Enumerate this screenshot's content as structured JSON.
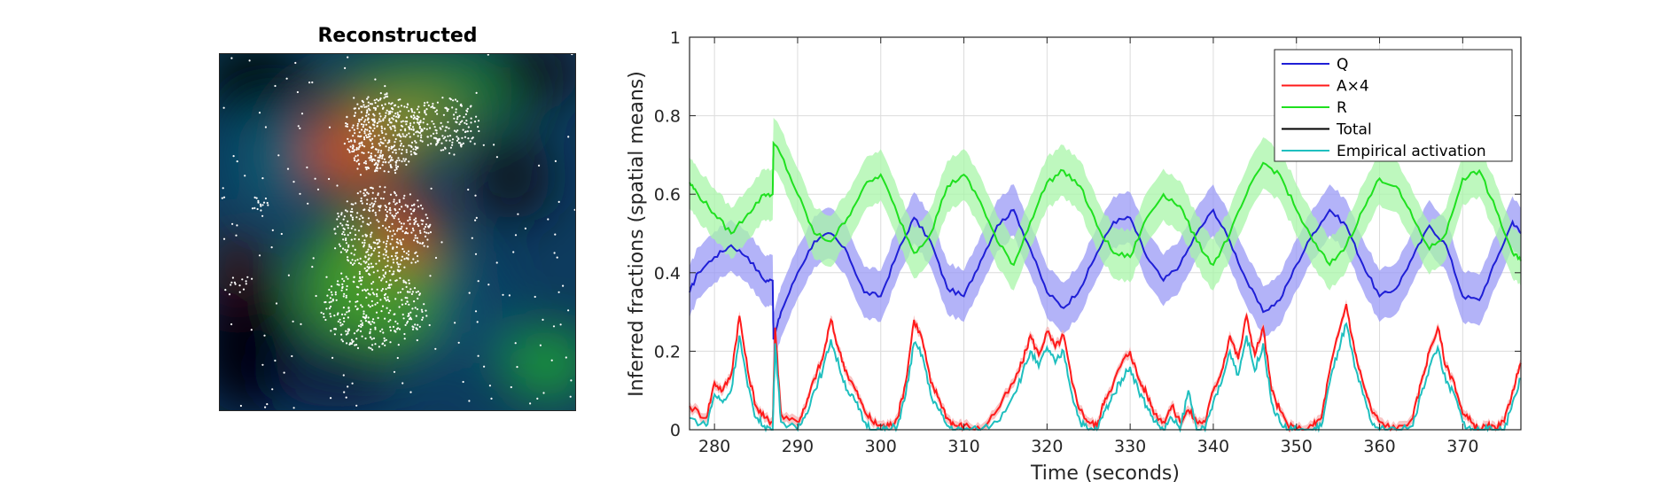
{
  "left_panel": {
    "title": "Reconstructed"
  },
  "chart_data": {
    "type": "line",
    "xlabel": "Time (seconds)",
    "ylabel": "Inferred fractions (spatial means)",
    "xlim": [
      277,
      377
    ],
    "ylim": [
      0,
      1
    ],
    "xticks": [
      280,
      290,
      300,
      310,
      320,
      330,
      340,
      350,
      360,
      370
    ],
    "yticks": [
      0,
      0.2,
      0.4,
      0.6,
      0.8,
      1
    ],
    "grid": true,
    "legend_position": "top-right",
    "colors": {
      "Q": "#1f1fd6",
      "A": "#ff1a1a",
      "R": "#1fe01f",
      "Total": "#000000",
      "Empirical": "#1fbfbf",
      "Q_band": "#9a9af5",
      "R_band": "#a8f5a8",
      "A_band": "#f5b0b0"
    },
    "legend": [
      "Q",
      "A×4",
      "R",
      "Total",
      "Empirical activation"
    ],
    "series": [
      {
        "name": "Q",
        "x": [
          277,
          278,
          280,
          282,
          284,
          286,
          287,
          287.1,
          288,
          290,
          292,
          294,
          296,
          298,
          300,
          302,
          304,
          306,
          308,
          310,
          312,
          314,
          316,
          318,
          320,
          322,
          324,
          326,
          328,
          330,
          332,
          334,
          336,
          338,
          340,
          342,
          344,
          346,
          348,
          350,
          352,
          354,
          356,
          358,
          360,
          362,
          364,
          366,
          368,
          370,
          372,
          374,
          376,
          377
        ],
        "y": [
          0.35,
          0.4,
          0.44,
          0.47,
          0.44,
          0.38,
          0.38,
          0.23,
          0.3,
          0.4,
          0.48,
          0.5,
          0.45,
          0.35,
          0.34,
          0.45,
          0.54,
          0.48,
          0.36,
          0.34,
          0.43,
          0.52,
          0.56,
          0.46,
          0.35,
          0.31,
          0.36,
          0.45,
          0.53,
          0.54,
          0.44,
          0.38,
          0.42,
          0.5,
          0.56,
          0.48,
          0.38,
          0.3,
          0.33,
          0.42,
          0.5,
          0.56,
          0.52,
          0.42,
          0.34,
          0.36,
          0.44,
          0.52,
          0.47,
          0.34,
          0.33,
          0.43,
          0.53,
          0.5
        ]
      },
      {
        "name": "A×4",
        "x": [
          277,
          279,
          280,
          281,
          282,
          283,
          284,
          285,
          286,
          287,
          287.3,
          288,
          290,
          291,
          292,
          293,
          294,
          295,
          296,
          297,
          298,
          299,
          300,
          301,
          302,
          303,
          304,
          305,
          306,
          307,
          308,
          309,
          310,
          312,
          314,
          316,
          317,
          318,
          319,
          320,
          321,
          322,
          323,
          324,
          325,
          326,
          327,
          328,
          329,
          330,
          331,
          332,
          333,
          334,
          335,
          336,
          337,
          338,
          339,
          340,
          341,
          342,
          343,
          344,
          345,
          346,
          347,
          348,
          349,
          350,
          352,
          353,
          354,
          355,
          356,
          357,
          358,
          359,
          360,
          362,
          364,
          365,
          366,
          367,
          368,
          369,
          370,
          371,
          372,
          373,
          374,
          375,
          376,
          377
        ],
        "y": [
          0.06,
          0.03,
          0.12,
          0.1,
          0.14,
          0.29,
          0.15,
          0.06,
          0.03,
          0.02,
          0.26,
          0.04,
          0.02,
          0.06,
          0.13,
          0.18,
          0.28,
          0.2,
          0.14,
          0.1,
          0.05,
          0.02,
          0.01,
          0.01,
          0.03,
          0.12,
          0.28,
          0.23,
          0.12,
          0.08,
          0.03,
          0.01,
          0.01,
          0.0,
          0.05,
          0.12,
          0.17,
          0.24,
          0.19,
          0.25,
          0.21,
          0.24,
          0.12,
          0.05,
          0.02,
          0.01,
          0.08,
          0.12,
          0.17,
          0.2,
          0.13,
          0.09,
          0.04,
          0.02,
          0.06,
          0.02,
          0.05,
          0.02,
          0.02,
          0.1,
          0.15,
          0.24,
          0.18,
          0.29,
          0.19,
          0.26,
          0.1,
          0.05,
          0.01,
          0.0,
          0.01,
          0.03,
          0.15,
          0.24,
          0.32,
          0.2,
          0.12,
          0.05,
          0.02,
          0.0,
          0.03,
          0.12,
          0.2,
          0.26,
          0.16,
          0.12,
          0.04,
          0.02,
          0.0,
          0.01,
          0.0,
          0.02,
          0.1,
          0.17
        ]
      },
      {
        "name": "R",
        "x": [
          277,
          278,
          280,
          282,
          284,
          286,
          287,
          287.1,
          288,
          290,
          292,
          294,
          296,
          298,
          300,
          302,
          304,
          306,
          308,
          310,
          312,
          314,
          316,
          318,
          320,
          322,
          324,
          326,
          328,
          330,
          332,
          334,
          336,
          338,
          340,
          342,
          344,
          346,
          348,
          350,
          352,
          354,
          356,
          358,
          360,
          362,
          364,
          366,
          368,
          370,
          372,
          374,
          376,
          377
        ],
        "y": [
          0.63,
          0.6,
          0.55,
          0.5,
          0.55,
          0.6,
          0.6,
          0.73,
          0.7,
          0.6,
          0.5,
          0.48,
          0.54,
          0.62,
          0.65,
          0.55,
          0.45,
          0.5,
          0.62,
          0.65,
          0.58,
          0.48,
          0.42,
          0.53,
          0.63,
          0.66,
          0.62,
          0.52,
          0.45,
          0.44,
          0.54,
          0.6,
          0.57,
          0.48,
          0.42,
          0.5,
          0.6,
          0.68,
          0.65,
          0.56,
          0.48,
          0.42,
          0.47,
          0.56,
          0.64,
          0.62,
          0.54,
          0.46,
          0.5,
          0.64,
          0.66,
          0.56,
          0.45,
          0.43
        ]
      },
      {
        "name": "Empirical activation",
        "x": [
          277,
          279,
          280,
          281,
          282,
          283,
          284,
          285,
          286,
          287,
          287.3,
          288,
          290,
          291,
          292,
          293,
          294,
          295,
          296,
          297,
          298,
          299,
          300,
          301,
          302,
          303,
          304,
          305,
          306,
          307,
          308,
          309,
          310,
          312,
          314,
          316,
          317,
          318,
          319,
          320,
          321,
          322,
          323,
          324,
          325,
          326,
          327,
          328,
          329,
          330,
          331,
          332,
          333,
          334,
          335,
          336,
          337,
          338,
          339,
          340,
          341,
          342,
          343,
          344,
          345,
          346,
          347,
          348,
          349,
          350,
          352,
          353,
          354,
          355,
          356,
          357,
          358,
          359,
          360,
          362,
          364,
          365,
          366,
          367,
          368,
          369,
          370,
          371,
          372,
          373,
          374,
          375,
          376,
          377
        ],
        "y": [
          0.03,
          0.01,
          0.09,
          0.07,
          0.1,
          0.24,
          0.11,
          0.03,
          0.01,
          0.0,
          0.22,
          0.02,
          0.0,
          0.04,
          0.1,
          0.15,
          0.23,
          0.16,
          0.1,
          0.07,
          0.02,
          0.0,
          0.0,
          0.0,
          0.01,
          0.09,
          0.22,
          0.19,
          0.09,
          0.05,
          0.01,
          0.0,
          0.0,
          0.0,
          0.02,
          0.09,
          0.14,
          0.2,
          0.16,
          0.21,
          0.17,
          0.2,
          0.09,
          0.02,
          0.0,
          0.0,
          0.05,
          0.09,
          0.13,
          0.16,
          0.1,
          0.06,
          0.02,
          0.0,
          0.03,
          0.0,
          0.1,
          0.0,
          0.0,
          0.07,
          0.12,
          0.2,
          0.14,
          0.24,
          0.15,
          0.22,
          0.07,
          0.02,
          0.0,
          0.0,
          0.0,
          0.01,
          0.12,
          0.2,
          0.27,
          0.16,
          0.09,
          0.02,
          0.0,
          0.0,
          0.01,
          0.09,
          0.16,
          0.21,
          0.12,
          0.09,
          0.02,
          0.0,
          0.0,
          0.0,
          0.0,
          0.0,
          0.07,
          0.13
        ]
      }
    ]
  }
}
